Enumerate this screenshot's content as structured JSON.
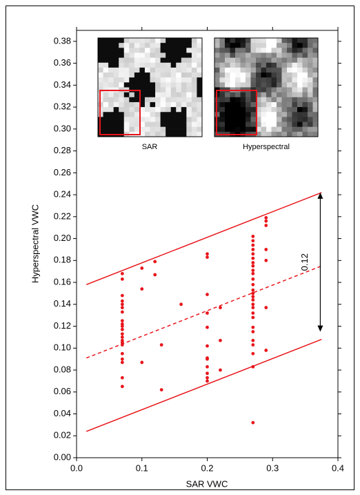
{
  "chart_data": {
    "type": "scatter",
    "xlabel": "SAR VWC",
    "ylabel": "Hyperspectral VWC",
    "xlim": [
      0,
      0.4
    ],
    "ylim": [
      0,
      0.39
    ],
    "xticks": [
      {
        "value": 0,
        "label": "0.0"
      },
      0.1,
      0.2,
      0.3,
      0.4
    ],
    "yticks": [
      {
        "value": 0,
        "label": "0.00"
      },
      0.02,
      0.04,
      0.06,
      0.08,
      {
        "value": 0.1,
        "label": "0.10"
      },
      0.12,
      0.14,
      0.16,
      0.18,
      {
        "value": 0.2,
        "label": "0.20"
      },
      0.22,
      0.24,
      0.26,
      0.28,
      {
        "value": 0.3,
        "label": "0.30"
      },
      0.32,
      0.34,
      0.36,
      0.38
    ],
    "color": "#e8151b",
    "x": [
      0.07,
      0.07,
      0.07,
      0.07,
      0.07,
      0.07,
      0.07,
      0.07,
      0.07,
      0.07,
      0.07,
      0.07,
      0.07,
      0.07,
      0.07,
      0.07,
      0.07,
      0.07,
      0.07,
      0.07,
      0.07,
      0.1,
      0.1,
      0.1,
      0.12,
      0.12,
      0.13,
      0.13,
      0.16,
      0.2,
      0.2,
      0.2,
      0.2,
      0.2,
      0.2,
      0.2,
      0.2,
      0.2,
      0.2,
      0.2,
      0.2,
      0.22,
      0.22,
      0.22,
      0.27,
      0.27,
      0.27,
      0.27,
      0.27,
      0.27,
      0.27,
      0.27,
      0.27,
      0.27,
      0.27,
      0.27,
      0.27,
      0.27,
      0.27,
      0.27,
      0.27,
      0.27,
      0.27,
      0.27,
      0.27,
      0.27,
      0.27,
      0.27,
      0.27,
      0.27,
      0.27,
      0.29,
      0.29,
      0.29,
      0.29,
      0.29,
      0.29,
      0.29
    ],
    "y": [
      0.168,
      0.163,
      0.148,
      0.143,
      0.14,
      0.137,
      0.133,
      0.125,
      0.122,
      0.12,
      0.117,
      0.113,
      0.11,
      0.107,
      0.105,
      0.103,
      0.095,
      0.09,
      0.087,
      0.073,
      0.065,
      0.173,
      0.154,
      0.087,
      0.179,
      0.167,
      0.103,
      0.062,
      0.14,
      0.186,
      0.183,
      0.149,
      0.132,
      0.119,
      0.102,
      0.091,
      0.09,
      0.083,
      0.077,
      0.073,
      0.07,
      0.137,
      0.107,
      0.08,
      0.202,
      0.198,
      0.194,
      0.19,
      0.186,
      0.182,
      0.178,
      0.175,
      0.171,
      0.168,
      0.163,
      0.158,
      0.153,
      0.15,
      0.147,
      0.144,
      0.14,
      0.137,
      0.132,
      0.128,
      0.119,
      0.115,
      0.107,
      0.103,
      0.095,
      0.083,
      0.032,
      0.219,
      0.216,
      0.212,
      0.19,
      0.18,
      0.137,
      0.098
    ],
    "lines": [
      {
        "x": [
          0.015,
          0.375
        ],
        "y": [
          0.158,
          0.242
        ],
        "style": "solid"
      },
      {
        "x": [
          0.015,
          0.375
        ],
        "y": [
          0.091,
          0.175
        ],
        "style": "dashed"
      },
      {
        "x": [
          0.015,
          0.375
        ],
        "y": [
          0.024,
          0.108
        ],
        "style": "solid"
      }
    ],
    "annotation": {
      "text": "0.12",
      "x": 0.373,
      "y": [
        0.115,
        0.242
      ]
    },
    "insets": [
      "SAR",
      "Hyperspectral"
    ]
  }
}
